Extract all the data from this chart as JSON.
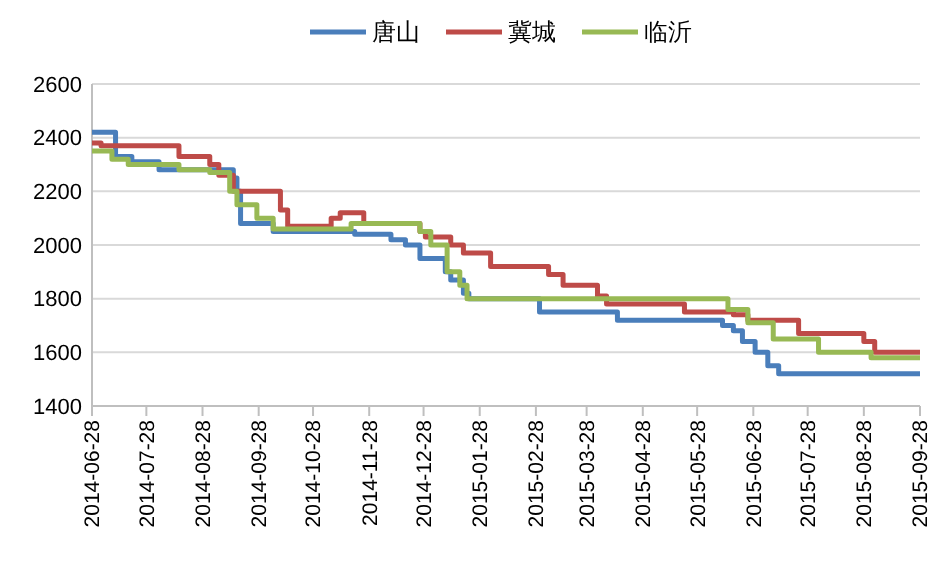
{
  "chart_data": {
    "type": "step",
    "legend": "top",
    "grid": "y",
    "ylim": [
      1400,
      2600
    ],
    "yticks": [
      1400,
      1600,
      1800,
      2000,
      2200,
      2400,
      2600
    ],
    "xlim": [
      "2014-06-28",
      "2015-09-28"
    ],
    "xticks": [
      "2014-06-28",
      "2014-07-28",
      "2014-08-28",
      "2014-09-28",
      "2014-10-28",
      "2014-11-28",
      "2014-12-28",
      "2015-01-28",
      "2015-02-28",
      "2015-03-28",
      "2015-04-28",
      "2015-05-28",
      "2015-06-28",
      "2015-07-28",
      "2015-08-28",
      "2015-09-28"
    ],
    "series": [
      {
        "name": "唐山",
        "color": "#4a7ebb",
        "x": [
          "2014-06-28",
          "2014-07-11",
          "2014-07-20",
          "2014-08-04",
          "2014-09-14",
          "2014-09-16",
          "2014-09-18",
          "2014-10-06",
          "2014-11-20",
          "2014-12-10",
          "2014-12-18",
          "2014-12-26",
          "2015-01-09",
          "2015-01-12",
          "2015-01-19",
          "2015-01-22",
          "2015-03-02",
          "2015-04-14",
          "2015-06-11",
          "2015-06-17",
          "2015-06-22",
          "2015-06-29",
          "2015-07-06",
          "2015-07-12",
          "2015-09-28"
        ],
        "values": [
          2420,
          2330,
          2310,
          2280,
          2250,
          2200,
          2080,
          2050,
          2040,
          2020,
          2000,
          1950,
          1900,
          1870,
          1820,
          1800,
          1750,
          1720,
          1700,
          1680,
          1640,
          1600,
          1550,
          1520,
          1520
        ]
      },
      {
        "name": "冀城",
        "color": "#be4b48",
        "x": [
          "2014-06-28",
          "2014-07-03",
          "2014-08-15",
          "2014-09-01",
          "2014-09-06",
          "2014-09-14",
          "2014-10-10",
          "2014-10-14",
          "2014-11-07",
          "2014-11-12",
          "2014-11-25",
          "2014-12-26",
          "2014-12-29",
          "2015-01-12",
          "2015-01-19",
          "2015-02-03",
          "2015-03-07",
          "2015-03-15",
          "2015-04-03",
          "2015-04-08",
          "2015-05-21",
          "2015-06-17",
          "2015-06-25",
          "2015-07-23",
          "2015-08-28",
          "2015-09-03",
          "2015-09-28"
        ],
        "values": [
          2380,
          2370,
          2330,
          2300,
          2260,
          2200,
          2130,
          2070,
          2100,
          2120,
          2080,
          2050,
          2030,
          2000,
          1970,
          1920,
          1890,
          1850,
          1810,
          1780,
          1750,
          1740,
          1720,
          1670,
          1640,
          1600,
          1600
        ]
      },
      {
        "name": "临沂",
        "color": "#98b954",
        "x": [
          "2014-06-28",
          "2014-07-09",
          "2014-07-18",
          "2014-08-15",
          "2014-09-01",
          "2014-09-12",
          "2014-09-16",
          "2014-09-27",
          "2014-10-06",
          "2014-11-18",
          "2014-12-26",
          "2015-01-01",
          "2015-01-10",
          "2015-01-17",
          "2015-01-21",
          "2015-06-14",
          "2015-06-25",
          "2015-07-09",
          "2015-08-03",
          "2015-09-01",
          "2015-09-28"
        ],
        "values": [
          2350,
          2320,
          2300,
          2280,
          2270,
          2200,
          2150,
          2100,
          2060,
          2080,
          2050,
          2000,
          1900,
          1850,
          1800,
          1760,
          1710,
          1650,
          1600,
          1580,
          1580
        ]
      }
    ]
  }
}
